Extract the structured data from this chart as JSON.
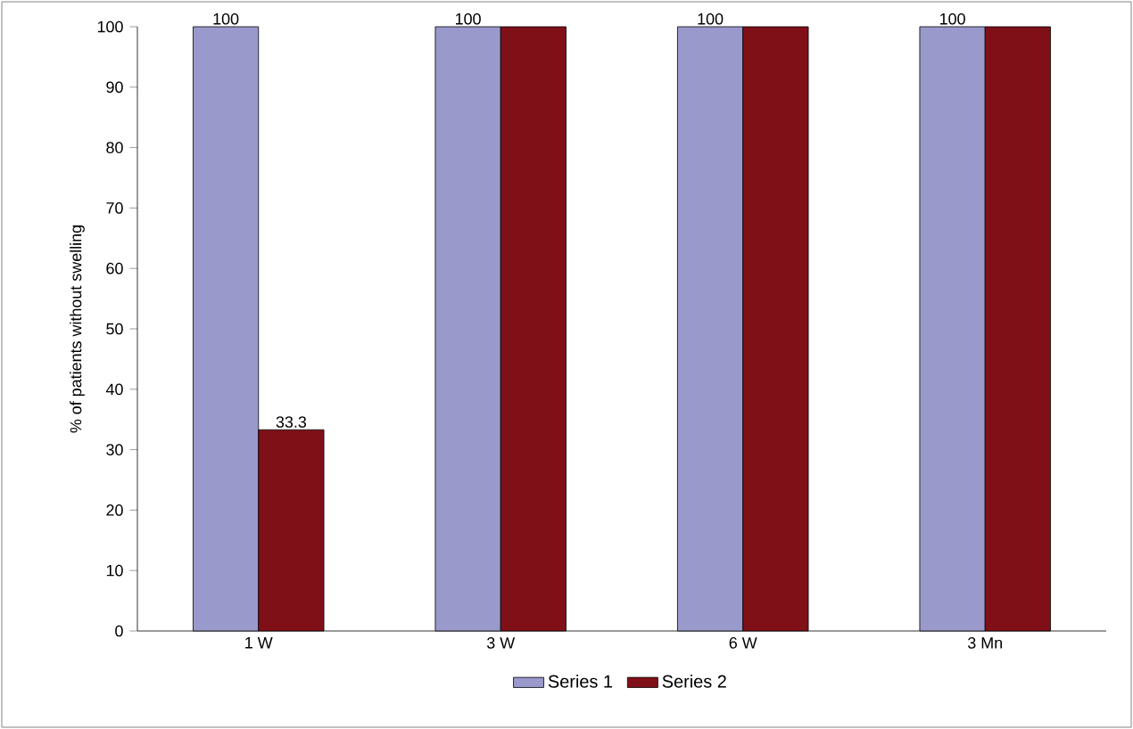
{
  "chart_data": {
    "type": "bar",
    "ylabel": "% of patients without swelling",
    "categories": [
      "1 W",
      "3 W",
      "6 W",
      "3 Mn"
    ],
    "series": [
      {
        "name": "Series 1",
        "color": "#9999cc",
        "values": [
          100,
          100,
          100,
          100
        ],
        "value_labels": [
          "100",
          "100",
          "100",
          "100"
        ]
      },
      {
        "name": "Series 2",
        "color": "#801018",
        "values": [
          33.3,
          100,
          100,
          100
        ],
        "value_labels": [
          "33.3",
          null,
          null,
          null
        ]
      }
    ],
    "ylim": [
      0,
      100
    ],
    "yticks": [
      0,
      10,
      20,
      30,
      40,
      50,
      60,
      70,
      80,
      90,
      100
    ],
    "grid": false,
    "legend": "bottom"
  }
}
